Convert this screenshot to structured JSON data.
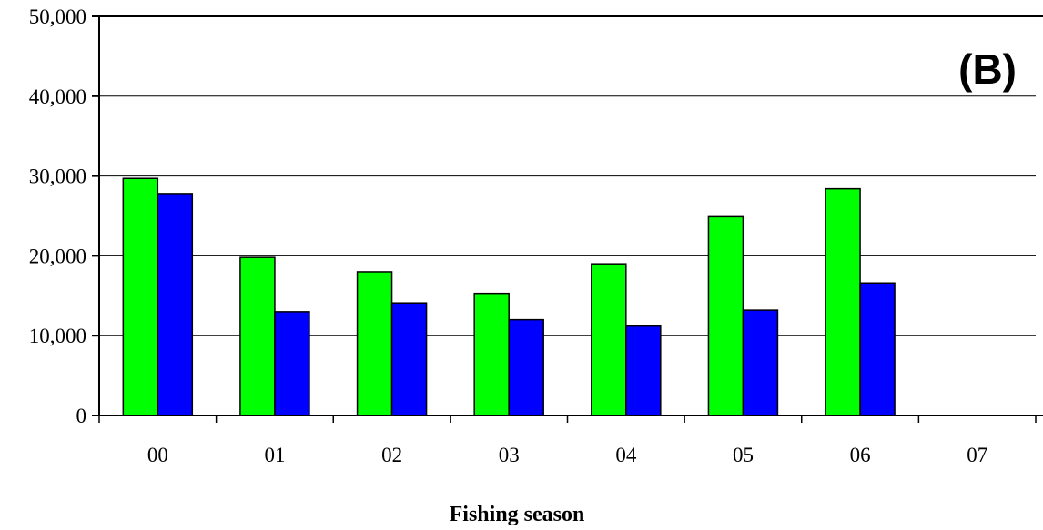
{
  "chart_data": {
    "type": "bar",
    "title": "",
    "panel_label": "(B)",
    "xlabel": "Fishing season",
    "ylabel": "",
    "categories": [
      "00",
      "01",
      "02",
      "03",
      "04",
      "05",
      "06",
      "07"
    ],
    "series": [
      {
        "color": "#00ff00",
        "values": [
          29700,
          19800,
          18000,
          15300,
          19000,
          24900,
          28400,
          null
        ]
      },
      {
        "color": "#0000ff",
        "values": [
          27800,
          13000,
          14100,
          12000,
          11200,
          13200,
          16600,
          null
        ]
      }
    ],
    "ylim": [
      0,
      50000
    ],
    "yticks": [
      0,
      10000,
      20000,
      30000,
      40000,
      50000
    ],
    "ytick_labels": [
      "0",
      "10,000",
      "20,000",
      "30,000",
      "40,000",
      "50,000"
    ],
    "grid": true,
    "legend": "none"
  }
}
